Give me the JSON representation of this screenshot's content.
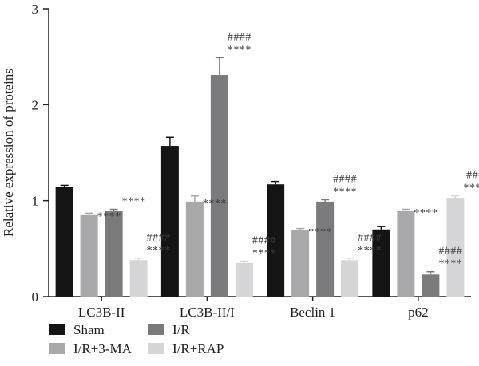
{
  "chart_data": {
    "type": "bar",
    "ylabel": "Relative expression of proteins",
    "xlabel": "",
    "ylim": [
      0,
      3
    ],
    "yticks": [
      0,
      1,
      2,
      3
    ],
    "categories": [
      "LC3B-II",
      "LC3B-II/I",
      "Beclin 1",
      "p62"
    ],
    "series": [
      {
        "name": "Sham",
        "color": "#141414",
        "values": [
          1.14,
          1.57,
          1.17,
          0.7
        ],
        "errors": [
          0.02,
          0.09,
          0.03,
          0.03
        ],
        "annotations": [
          [],
          [],
          [],
          []
        ]
      },
      {
        "name": "I/R+3-MA",
        "color": "#a9a9ab",
        "values": [
          0.85,
          0.99,
          0.69,
          0.89
        ],
        "errors": [
          0.02,
          0.06,
          0.02,
          0.02
        ],
        "annotations": [
          [
            "****"
          ],
          [
            "****"
          ],
          [
            "****"
          ],
          [
            "****"
          ]
        ]
      },
      {
        "name": "I/R",
        "color": "#7b7b7d",
        "values": [
          0.89,
          2.31,
          0.99,
          0.23
        ],
        "errors": [
          0.02,
          0.18,
          0.02,
          0.03
        ],
        "annotations": [
          [
            "****"
          ],
          [
            "####",
            "****"
          ],
          [
            "####",
            "****"
          ],
          [
            "####",
            "****"
          ]
        ]
      },
      {
        "name": "I/R+RAP",
        "color": "#d6d6d8",
        "values": [
          0.38,
          0.35,
          0.38,
          1.03
        ],
        "errors": [
          0.02,
          0.02,
          0.02,
          0.02
        ],
        "annotations": [
          [
            "####",
            "****"
          ],
          [
            "####",
            "****"
          ],
          [
            "####",
            "****"
          ],
          [
            "###",
            "****"
          ]
        ]
      }
    ],
    "legend": {
      "placement": "bottom",
      "rows": [
        [
          "Sham",
          "I/R"
        ],
        [
          "I/R+3-MA",
          "I/R+RAP"
        ]
      ]
    },
    "grid": false
  }
}
